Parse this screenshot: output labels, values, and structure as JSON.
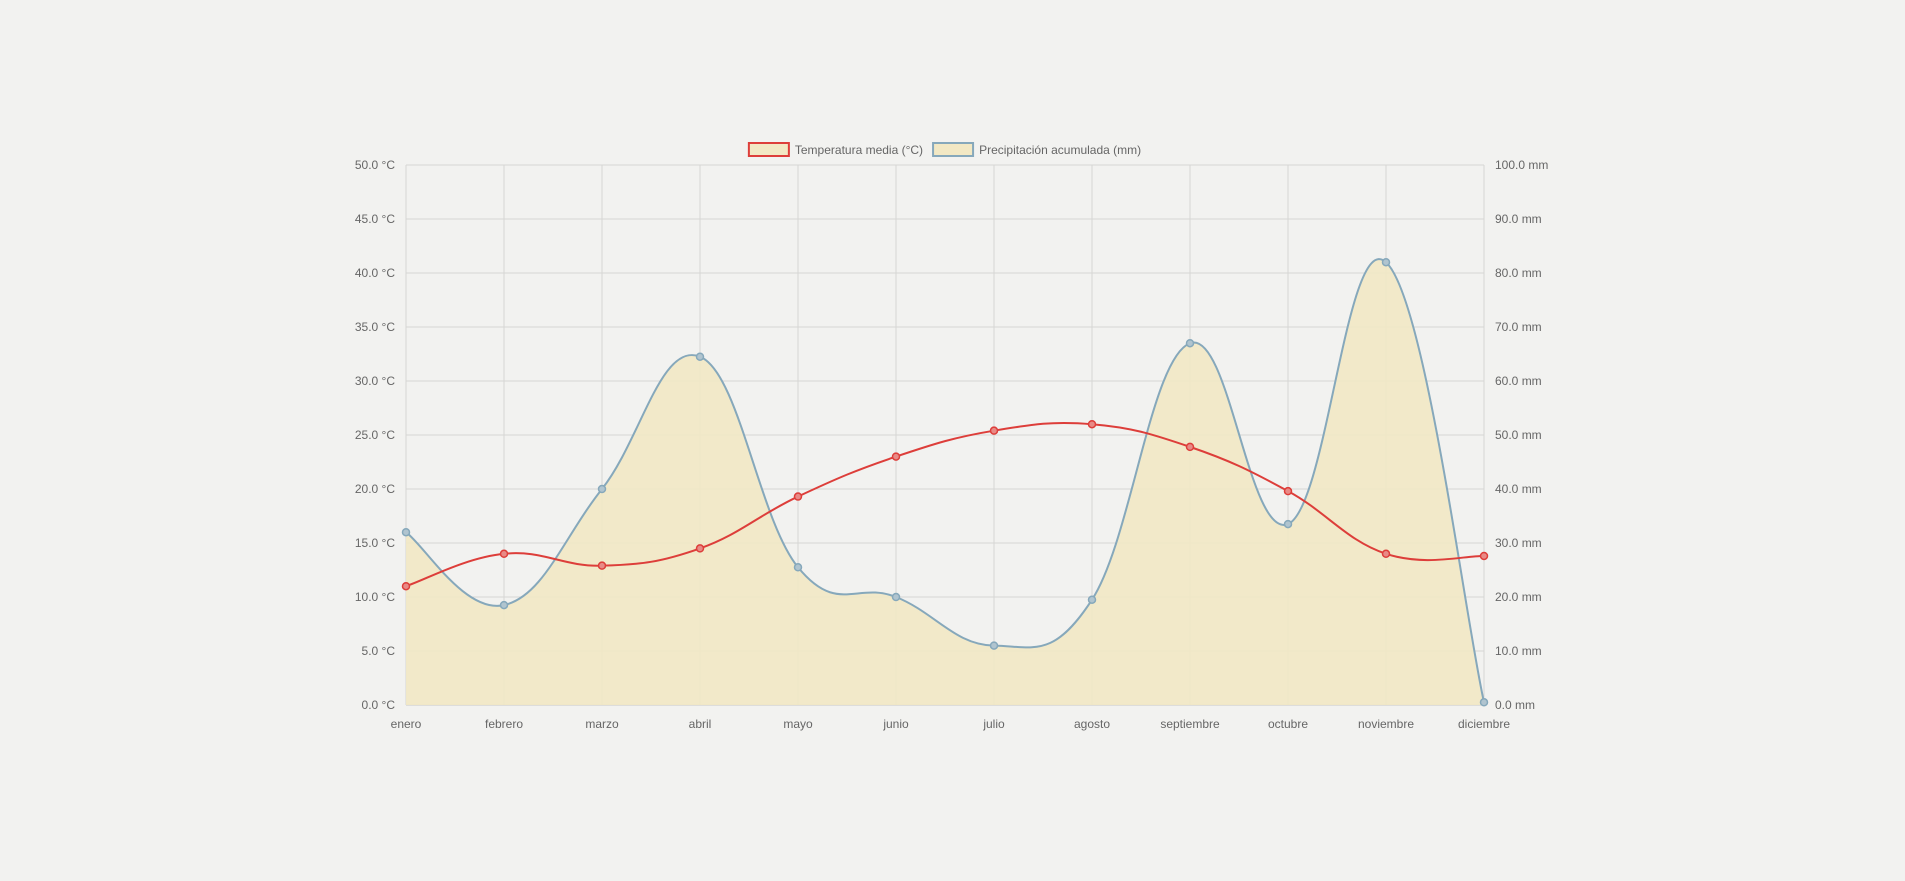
{
  "chart_data": {
    "type": "line",
    "categories": [
      "enero",
      "febrero",
      "marzo",
      "abril",
      "mayo",
      "junio",
      "julio",
      "agosto",
      "septiembre",
      "octubre",
      "noviembre",
      "diciembre"
    ],
    "series": [
      {
        "name": "Temperatura media (°C)",
        "axis": "left",
        "values": [
          11.0,
          14.0,
          12.9,
          14.5,
          19.3,
          23.0,
          25.4,
          26.0,
          23.9,
          19.8,
          14.0,
          13.8
        ],
        "line_color": "#dd3e3a",
        "fill": "none"
      },
      {
        "name": "Precipitación acumulada (mm)",
        "axis": "right",
        "values": [
          32.0,
          18.5,
          40.0,
          64.5,
          25.5,
          20.0,
          11.0,
          19.5,
          67.0,
          33.5,
          82.0,
          0.5
        ],
        "line_color": "#86a8bb",
        "fill_color": "#f2e8c4"
      }
    ],
    "y_left": {
      "ylim": [
        0,
        50
      ],
      "ticks": [
        "0.0 °C",
        "5.0 °C",
        "10.0 °C",
        "15.0 °C",
        "20.0 °C",
        "25.0 °C",
        "30.0 °C",
        "35.0 °C",
        "40.0 °C",
        "45.0 °C",
        "50.0 °C"
      ]
    },
    "y_right": {
      "ylim": [
        0,
        100
      ],
      "ticks": [
        "0.0 mm",
        "10.0 mm",
        "20.0 mm",
        "30.0 mm",
        "40.0 mm",
        "50.0 mm",
        "60.0 mm",
        "70.0 mm",
        "80.0 mm",
        "90.0 mm",
        "100.0 mm"
      ]
    },
    "grid": true,
    "legend_position": "top-center"
  }
}
